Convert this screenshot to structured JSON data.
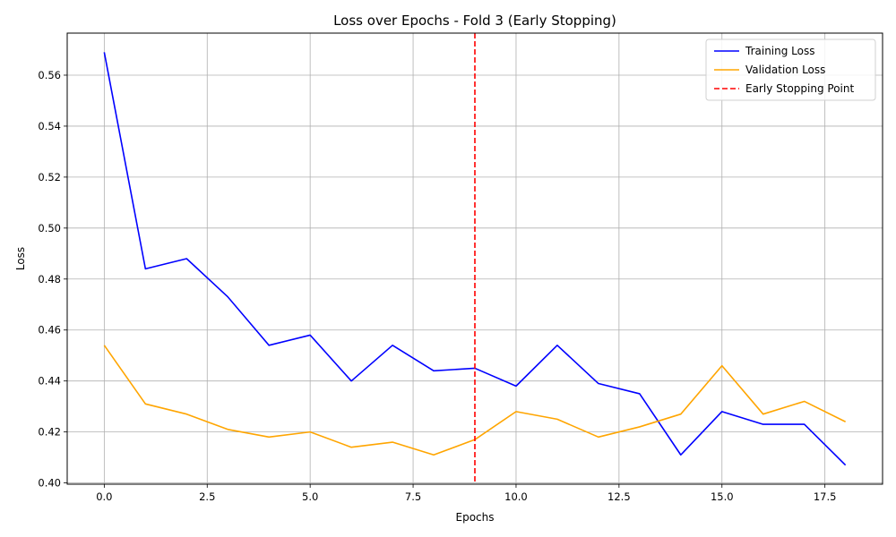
{
  "chart_data": {
    "type": "line",
    "title": "Loss over Epochs - Fold 3 (Early Stopping)",
    "xlabel": "Epochs",
    "ylabel": "Loss",
    "xlim": [
      -0.9,
      18.9
    ],
    "ylim": [
      0.3995,
      0.5765
    ],
    "xticks": [
      0,
      2.5,
      5,
      7.5,
      10,
      12.5,
      15,
      17.5
    ],
    "xtick_labels": [
      "0.0",
      "2.5",
      "5.0",
      "7.5",
      "10.0",
      "12.5",
      "15.0",
      "17.5"
    ],
    "yticks": [
      0.4,
      0.42,
      0.44,
      0.46,
      0.48,
      0.5,
      0.52,
      0.54,
      0.56
    ],
    "ytick_labels": [
      "0.40",
      "0.42",
      "0.44",
      "0.46",
      "0.48",
      "0.50",
      "0.52",
      "0.54",
      "0.56"
    ],
    "grid": true,
    "legend_position": "top-right",
    "x": [
      0,
      1,
      2,
      3,
      4,
      5,
      6,
      7,
      8,
      9,
      10,
      11,
      12,
      13,
      14,
      15,
      16,
      17,
      18
    ],
    "series": [
      {
        "name": "Training Loss",
        "color": "#0000ff",
        "style": "solid",
        "values": [
          0.569,
          0.484,
          0.488,
          0.473,
          0.454,
          0.458,
          0.44,
          0.454,
          0.444,
          0.445,
          0.438,
          0.454,
          0.439,
          0.435,
          0.411,
          0.428,
          0.423,
          0.423,
          0.407
        ]
      },
      {
        "name": "Validation Loss",
        "color": "#ffa500",
        "style": "solid",
        "values": [
          0.454,
          0.431,
          0.427,
          0.421,
          0.418,
          0.42,
          0.414,
          0.416,
          0.411,
          0.417,
          0.428,
          0.425,
          0.418,
          0.422,
          0.427,
          0.446,
          0.427,
          0.432,
          0.424
        ]
      }
    ],
    "vline": {
      "name": "Early Stopping Point",
      "x": 9,
      "color": "#ff0000",
      "style": "dashed"
    }
  }
}
